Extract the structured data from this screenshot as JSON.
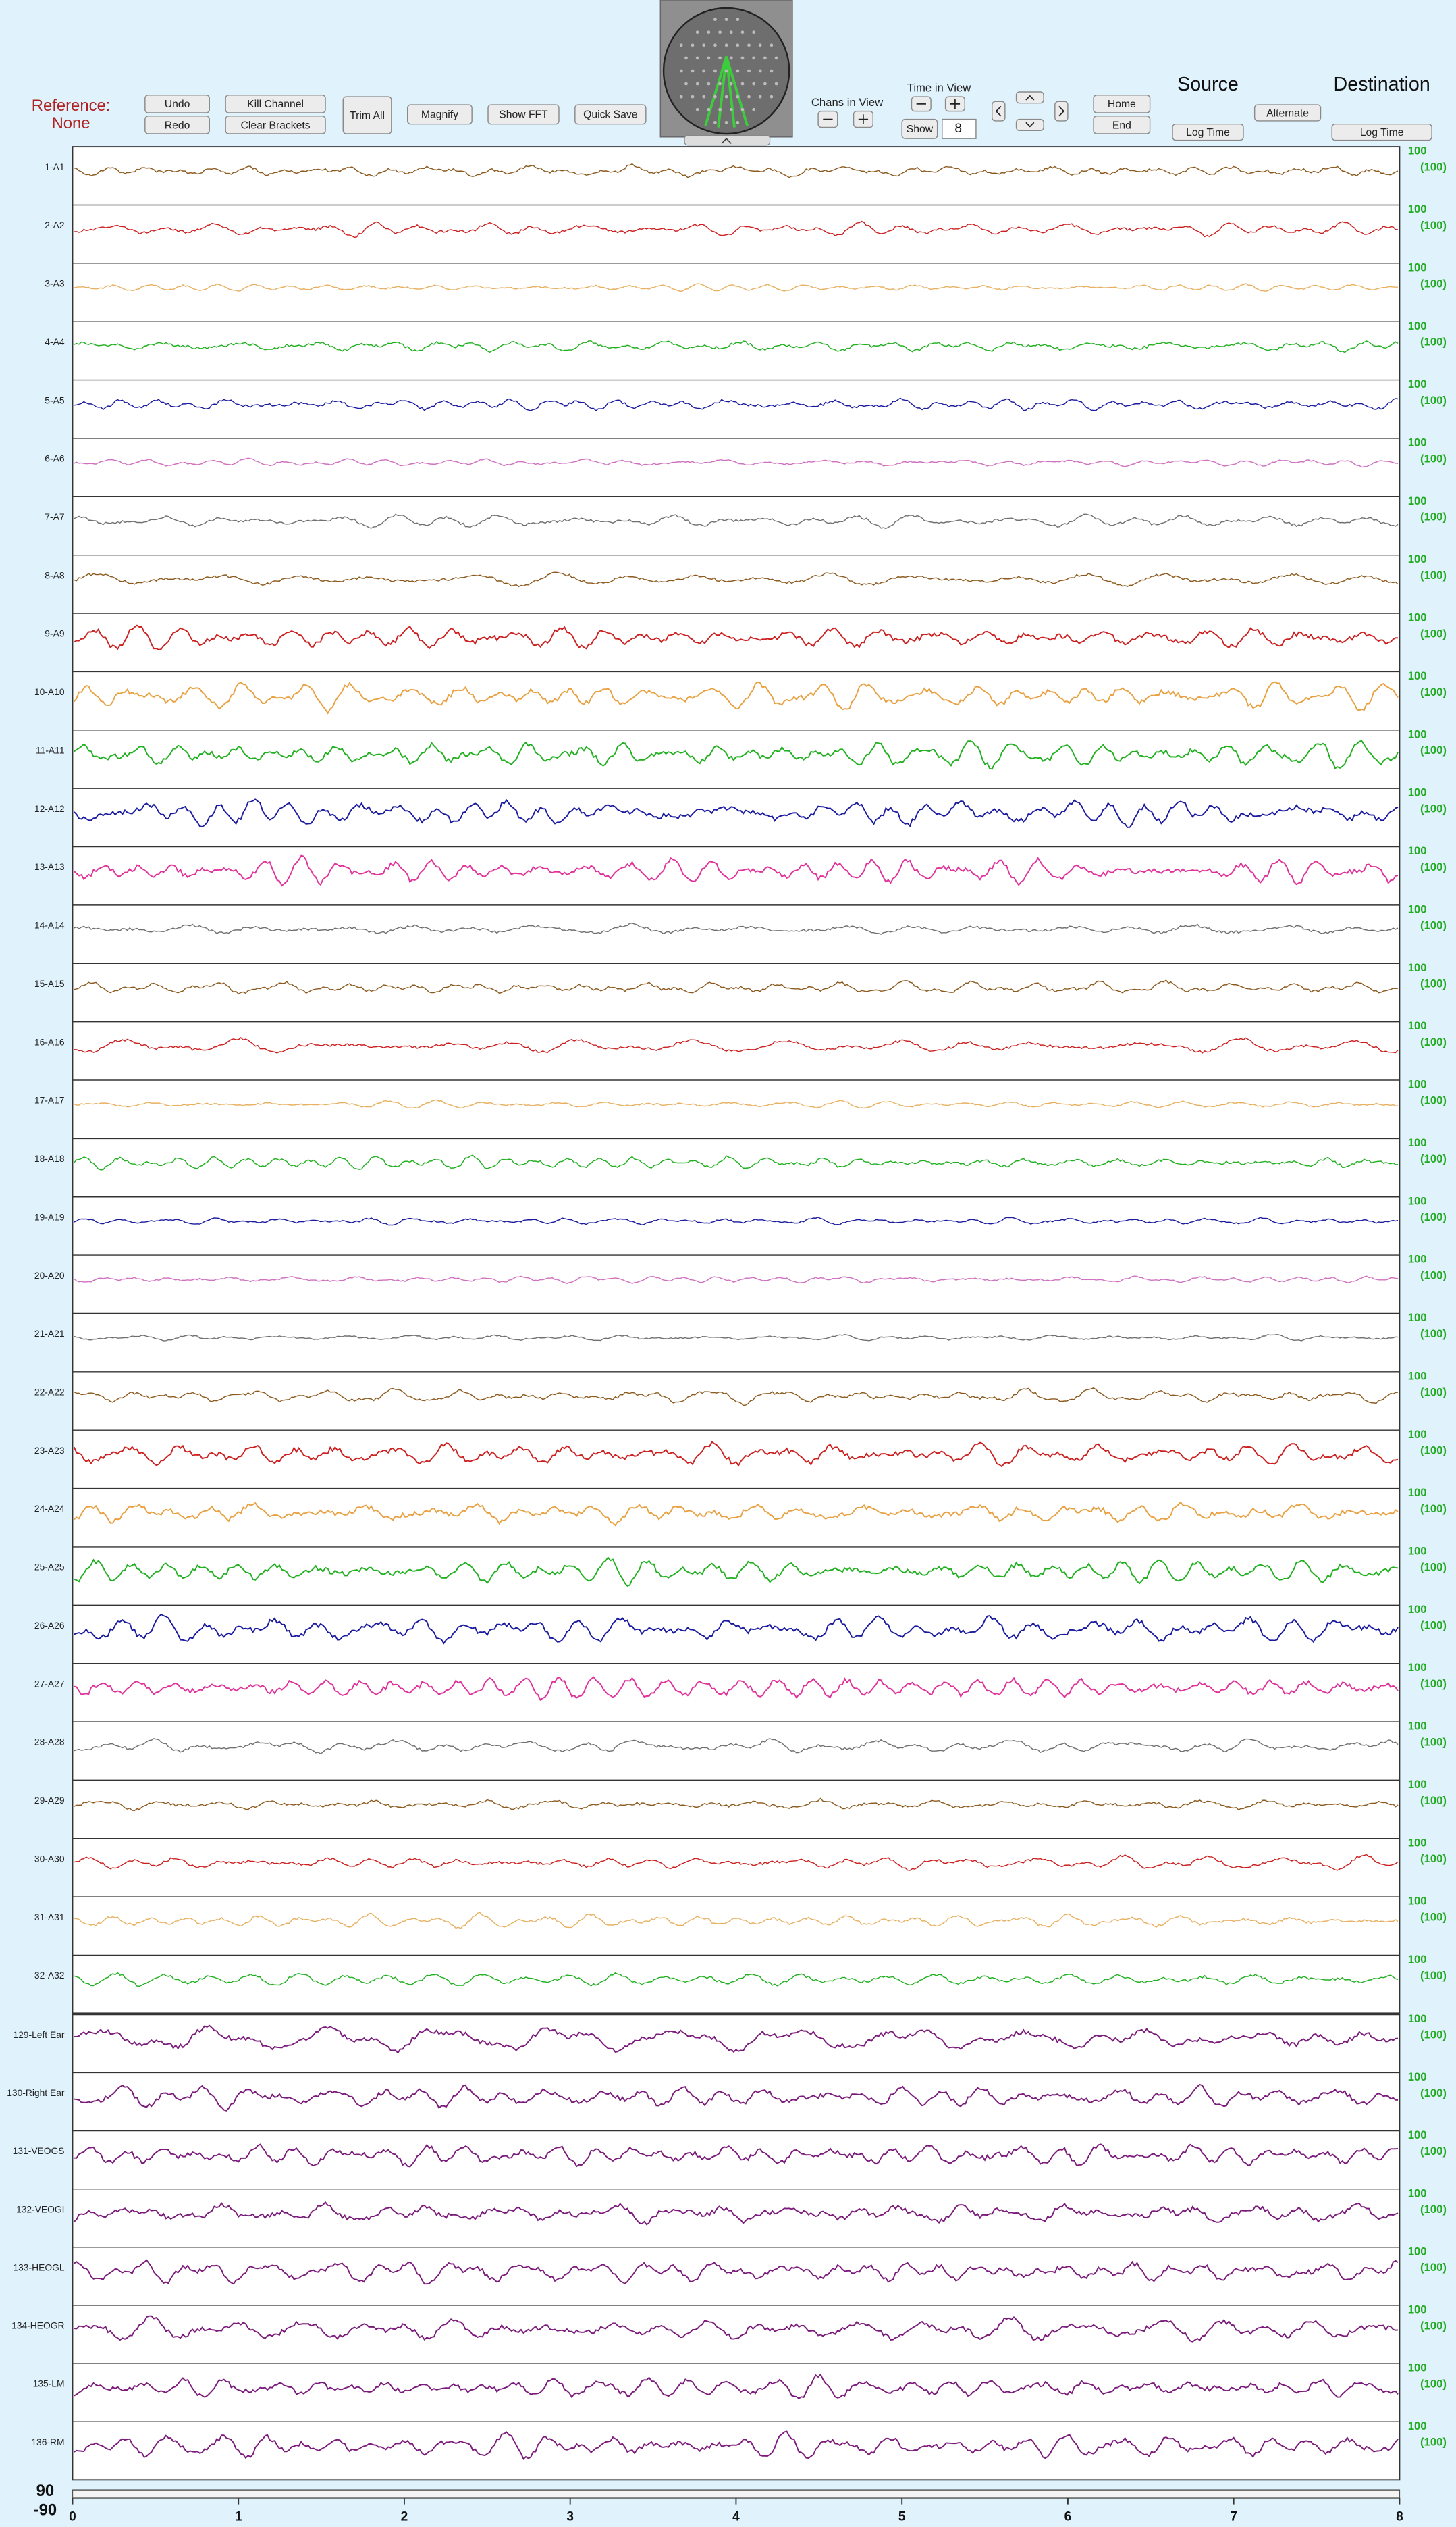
{
  "header": {
    "reference": "Reference:",
    "reference_value": "None",
    "undo": "Undo",
    "redo": "Redo",
    "kill_channel": "Kill Channel",
    "clear_brackets": "Clear Brackets",
    "trim_all": "Trim All",
    "magnify": "Magnify",
    "show_fft": "Show FFT",
    "quick_save": "Quick Save",
    "chans_in_view": "Chans in View",
    "time_in_view": "Time in View",
    "show": "Show",
    "time_value": "8",
    "home": "Home",
    "end": "End",
    "source": "Source",
    "source_log_time": "Log Time",
    "alternate": "Alternate",
    "destination": "Destination",
    "destination_log_time": "Log Time"
  },
  "channels": [
    {
      "label": "1-A1",
      "color": "#8c5a1e",
      "scale": "100",
      "scale_ref": "(100)"
    },
    {
      "label": "2-A2",
      "color": "#cc2020",
      "scale": "100",
      "scale_ref": "(100)"
    },
    {
      "label": "3-A3",
      "color": "#e8b060",
      "scale": "100",
      "scale_ref": "(100)"
    },
    {
      "label": "4-A4",
      "color": "#20b020",
      "scale": "100",
      "scale_ref": "(100)"
    },
    {
      "label": "5-A5",
      "color": "#1a1aa0",
      "scale": "100",
      "scale_ref": "(100)"
    },
    {
      "label": "6-A6",
      "color": "#d070c0",
      "scale": "100",
      "scale_ref": "(100)"
    },
    {
      "label": "7-A7",
      "color": "#707070",
      "scale": "100",
      "scale_ref": "(100)"
    },
    {
      "label": "8-A8",
      "color": "#8c5a1e",
      "scale": "100",
      "scale_ref": "(100)"
    },
    {
      "label": "9-A9",
      "color": "#cc2020",
      "scale": "100",
      "scale_ref": "(100)"
    },
    {
      "label": "10-A10",
      "color": "#e8a040",
      "scale": "100",
      "scale_ref": "(100)"
    },
    {
      "label": "11-A11",
      "color": "#20b020",
      "scale": "100",
      "scale_ref": "(100)"
    },
    {
      "label": "12-A12",
      "color": "#1a1aa0",
      "scale": "100",
      "scale_ref": "(100)"
    },
    {
      "label": "13-A13",
      "color": "#e0309a",
      "scale": "100",
      "scale_ref": "(100)"
    },
    {
      "label": "14-A14",
      "color": "#707070",
      "scale": "100",
      "scale_ref": "(100)"
    },
    {
      "label": "15-A15",
      "color": "#8c5a1e",
      "scale": "100",
      "scale_ref": "(100)"
    },
    {
      "label": "16-A16",
      "color": "#cc2020",
      "scale": "100",
      "scale_ref": "(100)"
    },
    {
      "label": "17-A17",
      "color": "#e8b060",
      "scale": "100",
      "scale_ref": "(100)"
    },
    {
      "label": "18-A18",
      "color": "#20b020",
      "scale": "100",
      "scale_ref": "(100)"
    },
    {
      "label": "19-A19",
      "color": "#1a1aa0",
      "scale": "100",
      "scale_ref": "(100)"
    },
    {
      "label": "20-A20",
      "color": "#d070c0",
      "scale": "100",
      "scale_ref": "(100)"
    },
    {
      "label": "21-A21",
      "color": "#707070",
      "scale": "100",
      "scale_ref": "(100)"
    },
    {
      "label": "22-A22",
      "color": "#8c5a1e",
      "scale": "100",
      "scale_ref": "(100)"
    },
    {
      "label": "23-A23",
      "color": "#cc2020",
      "scale": "100",
      "scale_ref": "(100)"
    },
    {
      "label": "24-A24",
      "color": "#e8a040",
      "scale": "100",
      "scale_ref": "(100)"
    },
    {
      "label": "25-A25",
      "color": "#20b020",
      "scale": "100",
      "scale_ref": "(100)"
    },
    {
      "label": "26-A26",
      "color": "#1a1aa0",
      "scale": "100",
      "scale_ref": "(100)"
    },
    {
      "label": "27-A27",
      "color": "#e0309a",
      "scale": "100",
      "scale_ref": "(100)"
    },
    {
      "label": "28-A28",
      "color": "#707070",
      "scale": "100",
      "scale_ref": "(100)"
    },
    {
      "label": "29-A29",
      "color": "#8c5a1e",
      "scale": "100",
      "scale_ref": "(100)"
    },
    {
      "label": "30-A30",
      "color": "#cc2020",
      "scale": "100",
      "scale_ref": "(100)"
    },
    {
      "label": "31-A31",
      "color": "#e8b060",
      "scale": "100",
      "scale_ref": "(100)"
    },
    {
      "label": "32-A32",
      "color": "#20b020",
      "scale": "100",
      "scale_ref": "(100)"
    },
    {
      "label": "129-Left Ear",
      "color": "#7a1a7a",
      "scale": "100",
      "scale_ref": "(100)"
    },
    {
      "label": "130-Right Ear",
      "color": "#7a1a7a",
      "scale": "100",
      "scale_ref": "(100)"
    },
    {
      "label": "131-VEOGS",
      "color": "#7a1a7a",
      "scale": "100",
      "scale_ref": "(100)"
    },
    {
      "label": "132-VEOGI",
      "color": "#7a1a7a",
      "scale": "100",
      "scale_ref": "(100)"
    },
    {
      "label": "133-HEOGL",
      "color": "#7a1a7a",
      "scale": "100",
      "scale_ref": "(100)"
    },
    {
      "label": "134-HEOGR",
      "color": "#7a1a7a",
      "scale": "100",
      "scale_ref": "(100)"
    },
    {
      "label": "135-LM",
      "color": "#7a1a7a",
      "scale": "100",
      "scale_ref": "(100)"
    },
    {
      "label": "136-RM",
      "color": "#7a1a7a",
      "scale": "100",
      "scale_ref": "(100)"
    }
  ],
  "time_axis": {
    "ticks": [
      0,
      1,
      2,
      3,
      4,
      5,
      6,
      7,
      8
    ]
  },
  "amplitude": {
    "max": 90,
    "min": -90
  }
}
